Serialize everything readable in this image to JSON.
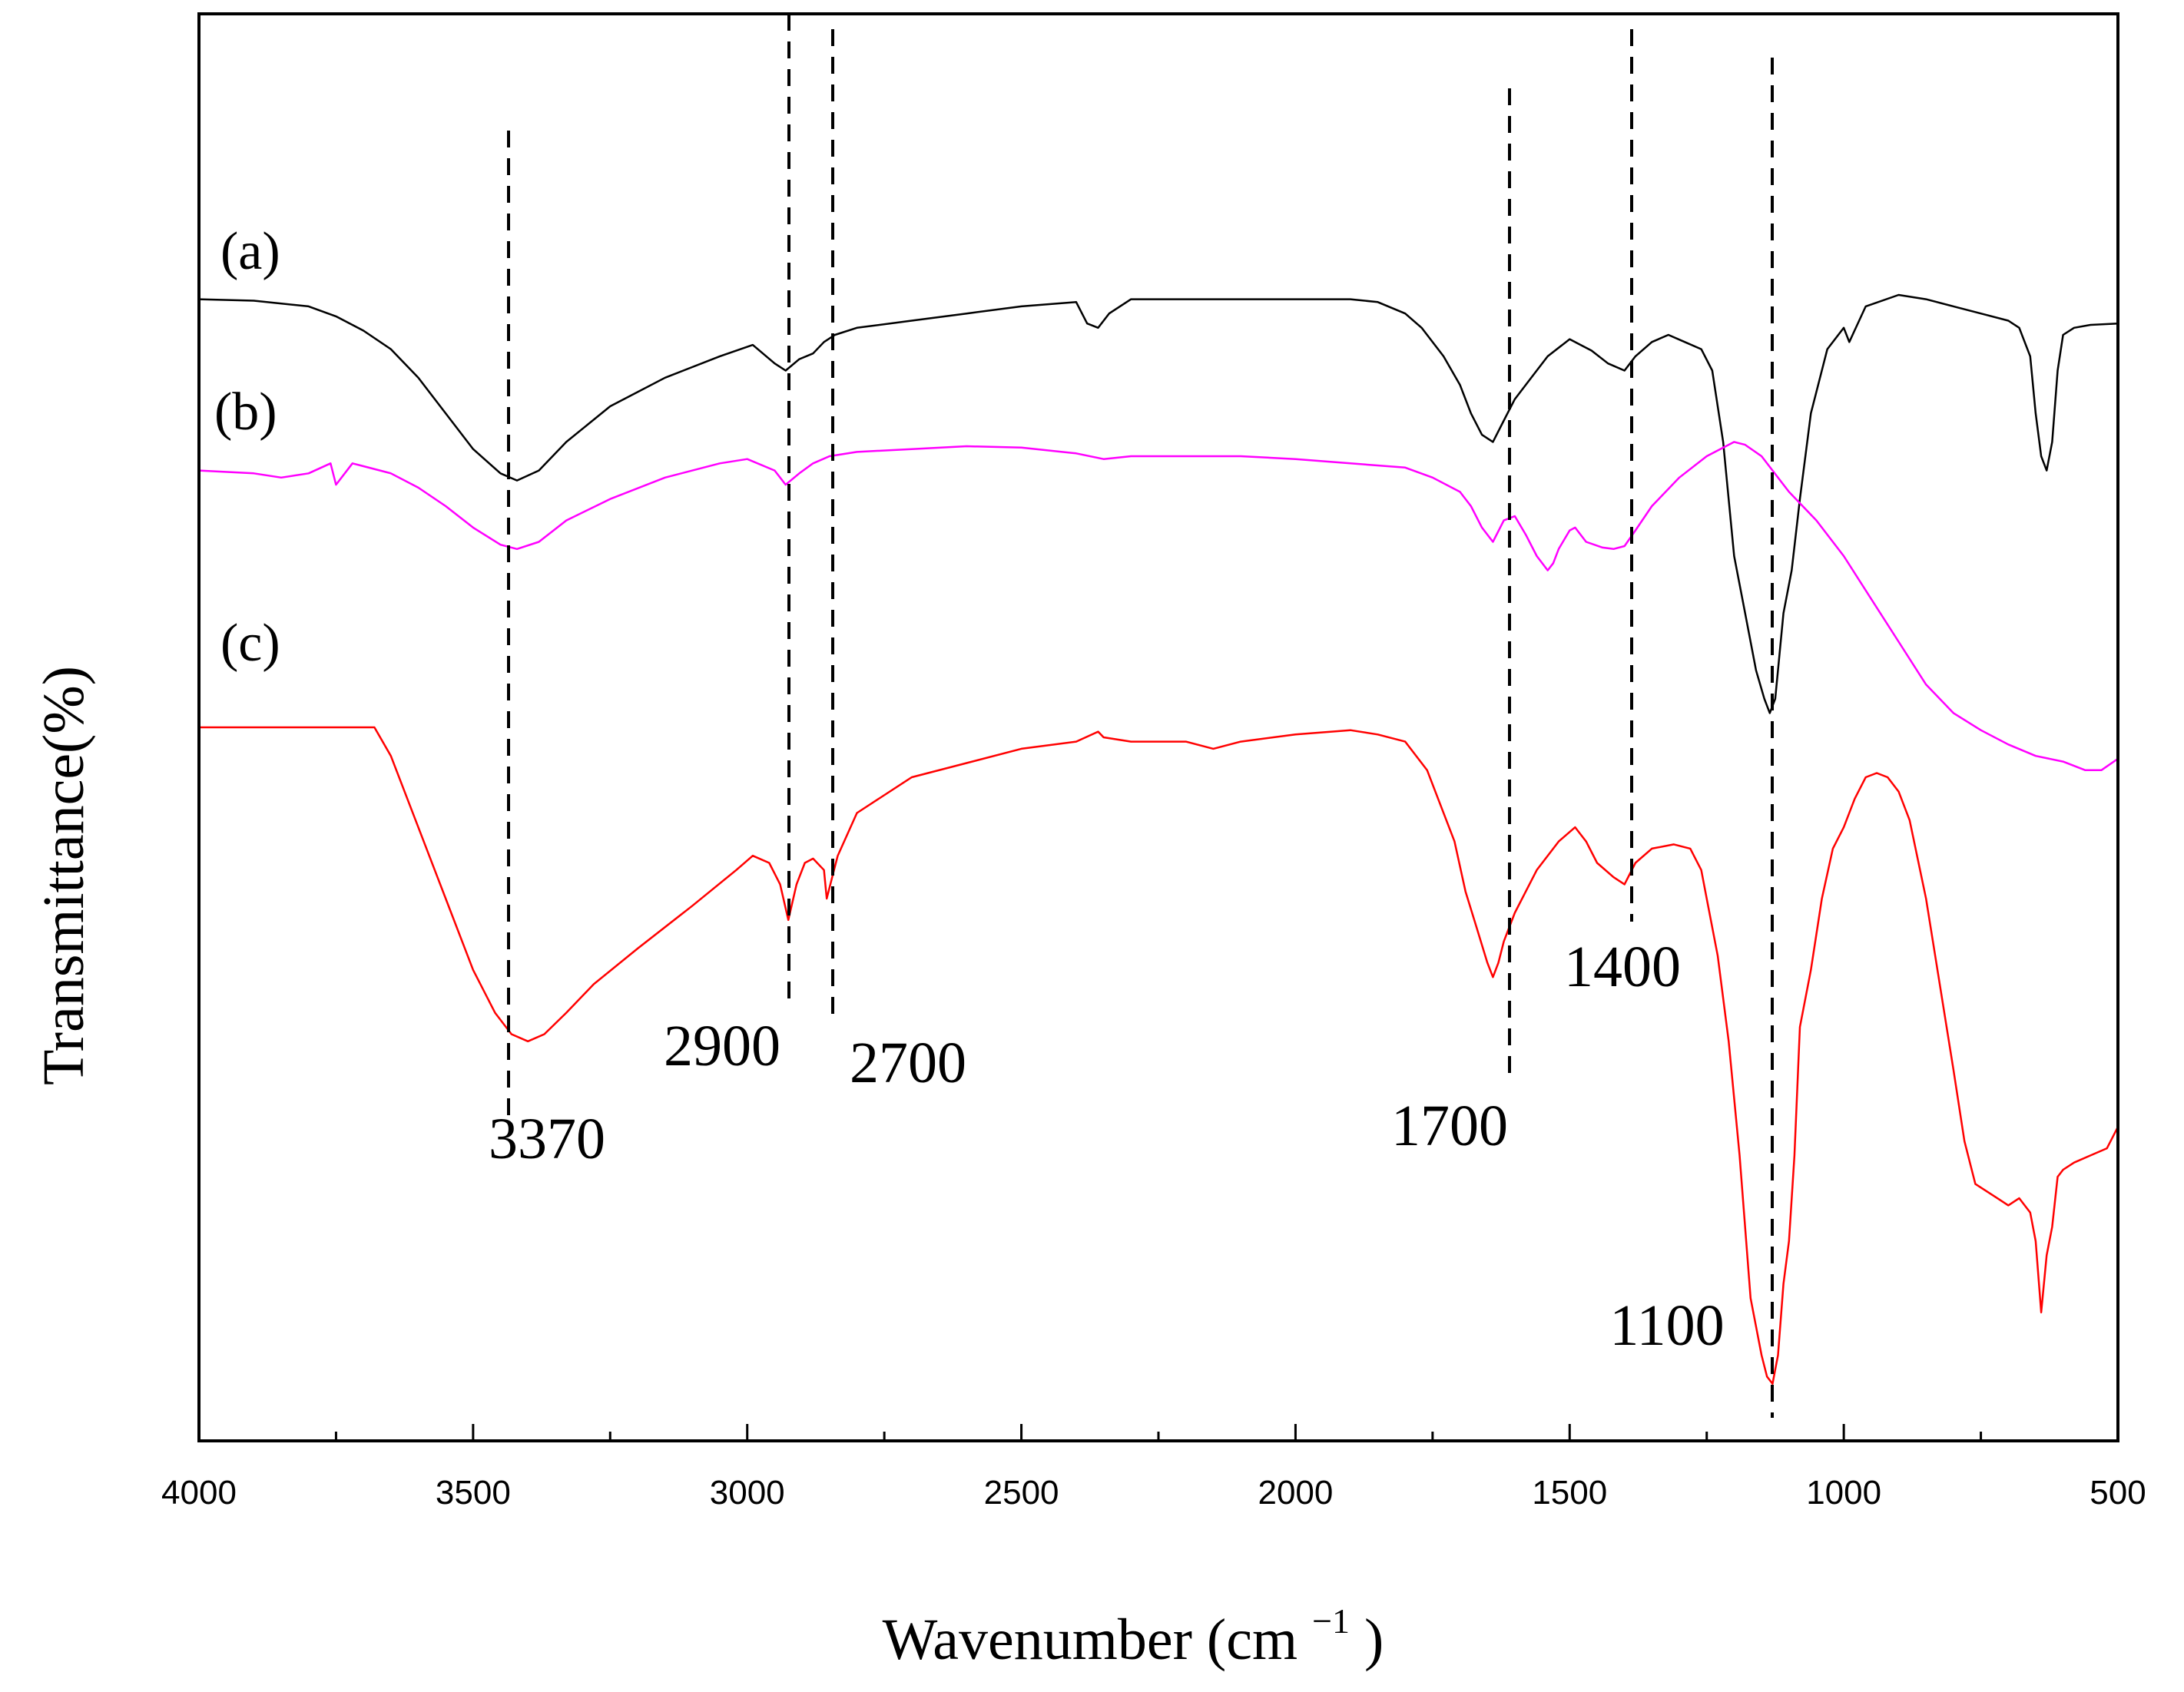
{
  "chart_data": {
    "type": "line",
    "title": "",
    "xlabel": "Wavenumber (cm",
    "xlabel_sup": "−1",
    "xlabel_end": ")",
    "ylabel": "Transmittance(%)",
    "xlim": [
      4000,
      500
    ],
    "x_reversed": true,
    "ylim": [
      0,
      100
    ],
    "grid": false,
    "legend": "none",
    "x_ticks": [
      4000,
      3500,
      3000,
      2500,
      2000,
      1500,
      1000,
      500
    ],
    "x_tick_labels": [
      "4000",
      "3500",
      "3000",
      "2500",
      "2000",
      "1500",
      "1000",
      "500"
    ],
    "series": [
      {
        "name": "(a)",
        "color": "#000000",
        "x": [
          4000,
          3900,
          3800,
          3750,
          3700,
          3650,
          3600,
          3550,
          3500,
          3450,
          3420,
          3380,
          3330,
          3250,
          3150,
          3050,
          2990,
          2950,
          2930,
          2905,
          2880,
          2860,
          2840,
          2800,
          2700,
          2600,
          2500,
          2400,
          2380,
          2360,
          2340,
          2300,
          2200,
          2100,
          2000,
          1900,
          1850,
          1800,
          1770,
          1730,
          1700,
          1680,
          1660,
          1640,
          1620,
          1600,
          1570,
          1540,
          1500,
          1480,
          1460,
          1430,
          1400,
          1380,
          1350,
          1320,
          1290,
          1260,
          1240,
          1220,
          1200,
          1180,
          1160,
          1145,
          1135,
          1125,
          1110,
          1095,
          1080,
          1060,
          1030,
          1000,
          990,
          960,
          900,
          850,
          800,
          750,
          700,
          680,
          660,
          650,
          640,
          630,
          620,
          610,
          600,
          580,
          550,
          500
        ],
        "y": [
          80.0,
          79.9,
          79.5,
          78.8,
          77.8,
          76.5,
          74.5,
          72.0,
          69.5,
          67.8,
          67.3,
          68.0,
          70.0,
          72.5,
          74.5,
          76.0,
          76.8,
          75.5,
          75.0,
          75.8,
          76.2,
          77.0,
          77.5,
          78.0,
          78.5,
          79.0,
          79.5,
          79.8,
          78.3,
          78.0,
          79.0,
          80.0,
          80.0,
          80.0,
          80.0,
          80.0,
          79.8,
          79.0,
          78.0,
          76.0,
          74.0,
          72.0,
          70.5,
          70.0,
          71.5,
          73.0,
          74.5,
          76.0,
          77.2,
          76.8,
          76.4,
          75.5,
          75.0,
          76.0,
          77.0,
          77.5,
          77.0,
          76.5,
          75.0,
          70.0,
          62.0,
          58.0,
          54.0,
          52.0,
          51.0,
          52.0,
          58.0,
          61.0,
          66.0,
          72.0,
          76.5,
          78.0,
          77.0,
          79.5,
          80.3,
          80.0,
          79.5,
          79.0,
          78.5,
          78.0,
          76.0,
          72.0,
          69.0,
          68.0,
          70.0,
          75.0,
          77.5,
          78.0,
          78.2,
          78.3
        ]
      },
      {
        "name": "(b)",
        "color": "#ff00ff",
        "x": [
          4000,
          3900,
          3850,
          3800,
          3760,
          3750,
          3720,
          3700,
          3650,
          3600,
          3550,
          3500,
          3450,
          3420,
          3380,
          3330,
          3250,
          3150,
          3050,
          3000,
          2950,
          2930,
          2905,
          2880,
          2850,
          2800,
          2700,
          2600,
          2500,
          2400,
          2350,
          2300,
          2200,
          2100,
          2000,
          1900,
          1800,
          1750,
          1700,
          1680,
          1660,
          1640,
          1620,
          1600,
          1580,
          1560,
          1540,
          1530,
          1520,
          1500,
          1490,
          1470,
          1440,
          1420,
          1400,
          1380,
          1350,
          1300,
          1250,
          1200,
          1180,
          1150,
          1100,
          1050,
          1000,
          950,
          900,
          850,
          800,
          750,
          700,
          650,
          600,
          560,
          530,
          500
        ],
        "y": [
          68.0,
          67.8,
          67.5,
          67.8,
          68.5,
          67.0,
          68.5,
          68.3,
          67.8,
          66.8,
          65.5,
          64.0,
          62.8,
          62.5,
          63.0,
          64.5,
          66.0,
          67.5,
          68.5,
          68.8,
          68.0,
          67.0,
          67.8,
          68.5,
          69.0,
          69.3,
          69.5,
          69.7,
          69.6,
          69.2,
          68.8,
          69.0,
          69.0,
          69.0,
          68.8,
          68.5,
          68.2,
          67.5,
          66.5,
          65.5,
          64.0,
          63.0,
          64.5,
          64.8,
          63.5,
          62.0,
          61.0,
          61.5,
          62.5,
          63.8,
          64.0,
          63.0,
          62.6,
          62.5,
          62.7,
          63.8,
          65.5,
          67.5,
          69.0,
          70.0,
          69.8,
          69.0,
          66.5,
          64.5,
          62.0,
          59.0,
          56.0,
          53.0,
          51.0,
          49.8,
          48.8,
          48.0,
          47.6,
          47.0,
          47.0,
          47.8
        ]
      },
      {
        "name": "(c)",
        "color": "#ff0000",
        "x": [
          4000,
          3900,
          3800,
          3750,
          3710,
          3680,
          3650,
          3600,
          3550,
          3500,
          3460,
          3430,
          3400,
          3370,
          3330,
          3280,
          3200,
          3100,
          3020,
          2990,
          2960,
          2940,
          2925,
          2910,
          2895,
          2880,
          2860,
          2855,
          2845,
          2835,
          2800,
          2700,
          2600,
          2500,
          2400,
          2360,
          2350,
          2300,
          2200,
          2150,
          2100,
          2000,
          1900,
          1850,
          1800,
          1760,
          1740,
          1710,
          1690,
          1670,
          1650,
          1640,
          1630,
          1620,
          1600,
          1560,
          1520,
          1490,
          1470,
          1450,
          1420,
          1400,
          1380,
          1350,
          1310,
          1280,
          1260,
          1250,
          1230,
          1210,
          1190,
          1170,
          1150,
          1140,
          1130,
          1125,
          1120,
          1110,
          1100,
          1090,
          1080,
          1060,
          1040,
          1020,
          1000,
          980,
          960,
          940,
          920,
          900,
          880,
          850,
          800,
          780,
          760,
          740,
          720,
          700,
          680,
          660,
          650,
          640,
          630,
          620,
          610,
          600,
          580,
          550,
          520,
          500
        ],
        "y": [
          50.0,
          50.0,
          50.0,
          50.0,
          50.0,
          50.0,
          48.0,
          43.0,
          38.0,
          33.0,
          30.0,
          28.5,
          28.0,
          28.5,
          30.0,
          32.0,
          34.5,
          37.5,
          40.0,
          41.0,
          40.5,
          39.0,
          36.5,
          39.0,
          40.5,
          40.8,
          40.0,
          38.0,
          39.5,
          41.0,
          44.0,
          46.5,
          47.5,
          48.5,
          49.0,
          49.7,
          49.3,
          49.0,
          49.0,
          48.5,
          49.0,
          49.5,
          49.8,
          49.5,
          49.0,
          47.0,
          45.0,
          42.0,
          38.5,
          36.0,
          33.5,
          32.5,
          33.5,
          35.0,
          37.0,
          40.0,
          42.0,
          43.0,
          42.0,
          40.5,
          39.5,
          39.0,
          40.5,
          41.5,
          41.8,
          41.5,
          40.0,
          38.0,
          34.0,
          28.0,
          20.0,
          10.0,
          6.0,
          4.5,
          4.0,
          5.0,
          6.0,
          11.0,
          14.0,
          20.0,
          29.0,
          33.0,
          38.0,
          41.5,
          43.0,
          45.0,
          46.5,
          46.8,
          46.5,
          45.5,
          43.5,
          38.0,
          26.0,
          21.0,
          18.0,
          17.5,
          17.0,
          16.5,
          17.0,
          16.0,
          14.0,
          9.0,
          13.0,
          15.0,
          18.5,
          19.0,
          19.5,
          20.0,
          20.5,
          22.0
        ]
      }
    ],
    "series_labels": [
      "(a)",
      "(b)",
      "(c)"
    ],
    "peak_markers": [
      {
        "wavenumber": 3370,
        "label": "3370"
      },
      {
        "wavenumber": 2900,
        "label": "2900"
      },
      {
        "wavenumber": 2700,
        "label": "2700"
      },
      {
        "wavenumber": 1700,
        "label": "1700"
      },
      {
        "wavenumber": 1400,
        "label": "1400"
      },
      {
        "wavenumber": 1100,
        "label": "1100"
      }
    ]
  }
}
